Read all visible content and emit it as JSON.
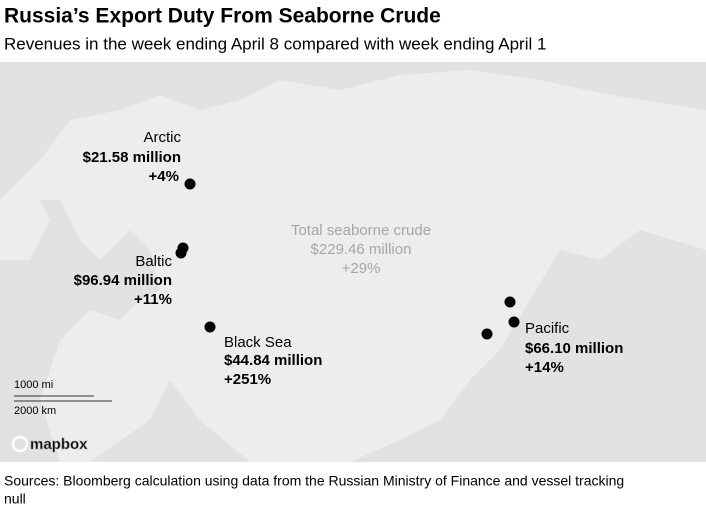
{
  "header": {
    "title": "Russia’s Export Duty From Seaborne Crude",
    "subtitle": "Revenues in the week ending April 8 compared with week ending April 1"
  },
  "map": {
    "total": {
      "name": "Total seaborne crude",
      "value": "$229.46 million",
      "change": "+29%"
    },
    "regions": [
      {
        "name": "Arctic",
        "value": "$21.58 million",
        "change": "+4%"
      },
      {
        "name": "Baltic",
        "value": "$96.94 million",
        "change": "+11%"
      },
      {
        "name": "Black Sea",
        "value": "$44.84 million",
        "change": "+251%"
      },
      {
        "name": "Pacific",
        "value": "$66.10 million",
        "change": "+14%"
      }
    ],
    "scale": [
      "1000 mi",
      "2000 km"
    ],
    "attribution": "mapbox"
  },
  "footer": {
    "source": "Sources: Bloomberg calculation using data from the Russian Ministry of Finance and vessel tracking",
    "note": "null"
  }
}
